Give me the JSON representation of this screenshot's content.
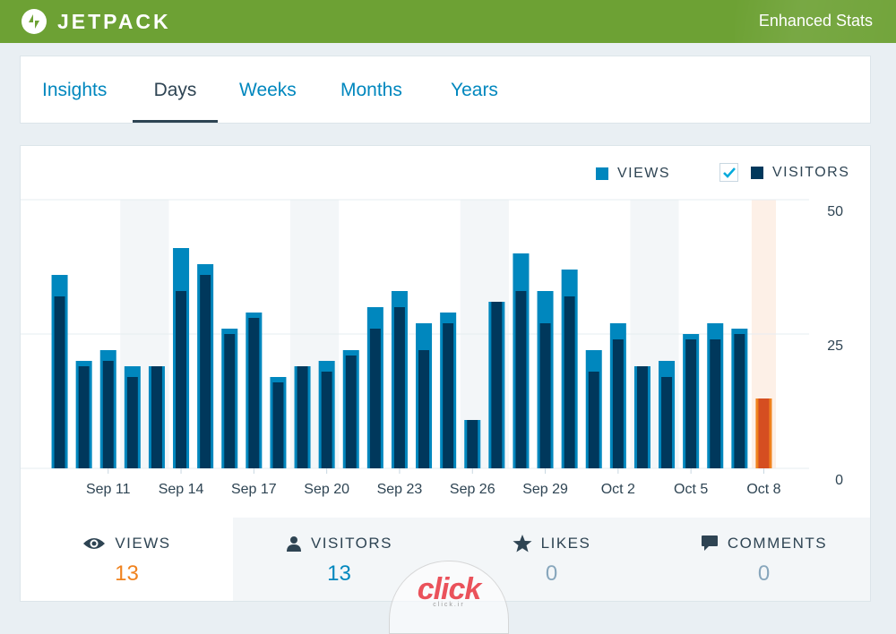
{
  "header": {
    "brand": "JETPACK",
    "logo_icon": "jetpack-bolt-icon",
    "right_text": "Enhanced Stats",
    "bg_color": "#6da134"
  },
  "tabs": [
    {
      "label": "Insights",
      "active": false
    },
    {
      "label": "Days",
      "active": true
    },
    {
      "label": "Weeks",
      "active": false
    },
    {
      "label": "Months",
      "active": false
    },
    {
      "label": "Years",
      "active": false
    }
  ],
  "legend": {
    "views_label": "VIEWS",
    "visitors_label": "VISITORS",
    "visitors_checked": true
  },
  "colors": {
    "views": "#0087be",
    "visitors": "#00385c",
    "today_views": "#f0821e",
    "today_visitors": "#d54e21",
    "today_band": "#fdf0e7",
    "weekend_band": "#f3f6f8",
    "link": "#0087be",
    "orange_value": "#f0821e",
    "muted_value": "#87a6bc"
  },
  "chart_data": {
    "type": "bar",
    "categories": [
      "Sep 9",
      "Sep 10",
      "Sep 11",
      "Sep 12",
      "Sep 13",
      "Sep 14",
      "Sep 15",
      "Sep 16",
      "Sep 17",
      "Sep 18",
      "Sep 19",
      "Sep 20",
      "Sep 21",
      "Sep 22",
      "Sep 23",
      "Sep 24",
      "Sep 25",
      "Sep 26",
      "Sep 27",
      "Sep 28",
      "Sep 29",
      "Sep 30",
      "Oct 1",
      "Oct 2",
      "Oct 3",
      "Oct 4",
      "Oct 5",
      "Oct 6",
      "Oct 7",
      "Oct 8"
    ],
    "series": [
      {
        "name": "Views",
        "values": [
          36,
          20,
          22,
          19,
          19,
          41,
          38,
          26,
          29,
          17,
          19,
          20,
          22,
          30,
          33,
          27,
          29,
          9,
          31,
          40,
          33,
          37,
          22,
          27,
          19,
          20,
          25,
          27,
          26,
          13
        ]
      },
      {
        "name": "Visitors",
        "values": [
          32,
          19,
          20,
          17,
          19,
          33,
          36,
          25,
          28,
          16,
          19,
          18,
          21,
          26,
          30,
          22,
          27,
          9,
          31,
          33,
          27,
          32,
          18,
          24,
          19,
          17,
          24,
          24,
          25,
          13
        ]
      }
    ],
    "x_tick_labels": [
      "Sep 11",
      "Sep 14",
      "Sep 17",
      "Sep 20",
      "Sep 23",
      "Sep 26",
      "Sep 29",
      "Oct 2",
      "Oct 5",
      "Oct 8"
    ],
    "x_tick_indices": [
      2,
      5,
      8,
      11,
      14,
      17,
      20,
      23,
      26,
      29
    ],
    "y_ticks": [
      0,
      25,
      50
    ],
    "ylim": [
      0,
      50
    ],
    "weekend_bands": [
      [
        3,
        4
      ],
      [
        10,
        11
      ],
      [
        17,
        18
      ],
      [
        24,
        25
      ]
    ],
    "highlight_index": 29
  },
  "summary": [
    {
      "label": "VIEWS",
      "value": "13",
      "icon": "eye-icon",
      "active": true
    },
    {
      "label": "VISITORS",
      "value": "13",
      "icon": "person-icon",
      "active": false
    },
    {
      "label": "LIKES",
      "value": "0",
      "icon": "star-icon",
      "active": false
    },
    {
      "label": "COMMENTS",
      "value": "0",
      "icon": "comment-icon",
      "active": false
    }
  ],
  "watermark": {
    "text": "click",
    "sub": "click.ir"
  }
}
